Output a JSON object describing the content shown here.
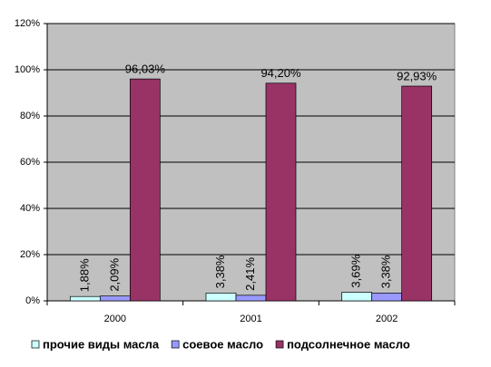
{
  "chart_data": {
    "type": "bar",
    "categories": [
      "2000",
      "2001",
      "2002"
    ],
    "series": [
      {
        "name": "прочие виды масла",
        "color": "#ccffff",
        "values": [
          1.88,
          3.38,
          3.69
        ],
        "value_labels": [
          "1,88%",
          "3,38%",
          "3,69%"
        ]
      },
      {
        "name": "соевое масло",
        "color": "#9999ff",
        "values": [
          2.09,
          2.41,
          3.38
        ],
        "value_labels": [
          "2,09%",
          "2,41%",
          "3,38%"
        ]
      },
      {
        "name": "подсолнечное масло",
        "color": "#993366",
        "values": [
          96.03,
          94.2,
          92.93
        ],
        "value_labels": [
          "96,03%",
          "94,20%",
          "92,93%"
        ]
      }
    ],
    "ylim": [
      0,
      120
    ],
    "yticks": [
      {
        "value": 0,
        "label": "0%"
      },
      {
        "value": 20,
        "label": "20%"
      },
      {
        "value": 40,
        "label": "40%"
      },
      {
        "value": 60,
        "label": "60%"
      },
      {
        "value": 80,
        "label": "80%"
      },
      {
        "value": 100,
        "label": "100%"
      },
      {
        "value": 120,
        "label": "120%"
      }
    ],
    "grid": true,
    "legend": "bottom",
    "plot_background": "#c0c0c0"
  }
}
